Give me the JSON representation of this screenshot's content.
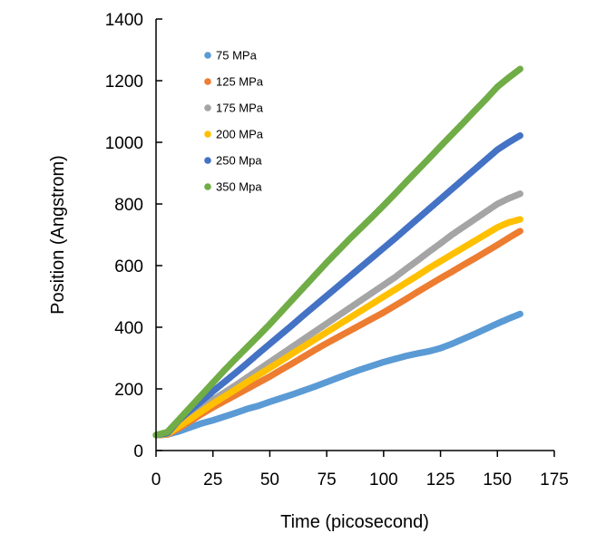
{
  "chart_data": {
    "type": "scatter",
    "title": "",
    "xlabel": "Time (picosecond)",
    "ylabel": "Position (Angstrom)",
    "xlim": [
      0,
      175
    ],
    "ylim": [
      0,
      1400
    ],
    "xticks": [
      0,
      25,
      50,
      75,
      100,
      125,
      150,
      175
    ],
    "yticks": [
      0,
      200,
      400,
      600,
      800,
      1000,
      1200,
      1400
    ],
    "grid": false,
    "legend_position": "top-left",
    "series": [
      {
        "name": "75 MPa",
        "color": "#5b9bd5",
        "points": [
          [
            0,
            50
          ],
          [
            5,
            52
          ],
          [
            10,
            62
          ],
          [
            15,
            75
          ],
          [
            20,
            88
          ],
          [
            25,
            98
          ],
          [
            30,
            110
          ],
          [
            35,
            122
          ],
          [
            40,
            135
          ],
          [
            45,
            145
          ],
          [
            50,
            158
          ],
          [
            55,
            170
          ],
          [
            60,
            182
          ],
          [
            65,
            195
          ],
          [
            70,
            208
          ],
          [
            75,
            222
          ],
          [
            80,
            236
          ],
          [
            85,
            250
          ],
          [
            90,
            263
          ],
          [
            95,
            275
          ],
          [
            100,
            287
          ],
          [
            105,
            297
          ],
          [
            110,
            307
          ],
          [
            115,
            315
          ],
          [
            120,
            322
          ],
          [
            125,
            332
          ],
          [
            130,
            346
          ],
          [
            135,
            362
          ],
          [
            140,
            378
          ],
          [
            145,
            395
          ],
          [
            150,
            412
          ],
          [
            155,
            428
          ],
          [
            160,
            443
          ]
        ]
      },
      {
        "name": "125 MPa",
        "color": "#ed7d31",
        "points": [
          [
            0,
            50
          ],
          [
            5,
            52
          ],
          [
            10,
            72
          ],
          [
            15,
            95
          ],
          [
            20,
            118
          ],
          [
            25,
            140
          ],
          [
            30,
            160
          ],
          [
            35,
            180
          ],
          [
            40,
            200
          ],
          [
            45,
            220
          ],
          [
            50,
            240
          ],
          [
            55,
            262
          ],
          [
            60,
            283
          ],
          [
            65,
            305
          ],
          [
            70,
            327
          ],
          [
            75,
            348
          ],
          [
            80,
            368
          ],
          [
            85,
            388
          ],
          [
            90,
            408
          ],
          [
            95,
            428
          ],
          [
            100,
            448
          ],
          [
            105,
            470
          ],
          [
            110,
            492
          ],
          [
            115,
            515
          ],
          [
            120,
            537
          ],
          [
            125,
            559
          ],
          [
            130,
            580
          ],
          [
            135,
            602
          ],
          [
            140,
            623
          ],
          [
            145,
            645
          ],
          [
            150,
            667
          ],
          [
            155,
            690
          ],
          [
            160,
            712
          ]
        ]
      },
      {
        "name": "175 MPa",
        "color": "#a5a5a5",
        "points": [
          [
            0,
            50
          ],
          [
            5,
            54
          ],
          [
            10,
            85
          ],
          [
            15,
            115
          ],
          [
            20,
            140
          ],
          [
            25,
            165
          ],
          [
            30,
            188
          ],
          [
            35,
            212
          ],
          [
            40,
            237
          ],
          [
            45,
            262
          ],
          [
            50,
            287
          ],
          [
            55,
            312
          ],
          [
            60,
            337
          ],
          [
            65,
            362
          ],
          [
            70,
            387
          ],
          [
            75,
            412
          ],
          [
            80,
            437
          ],
          [
            85,
            462
          ],
          [
            90,
            487
          ],
          [
            95,
            512
          ],
          [
            100,
            537
          ],
          [
            105,
            562
          ],
          [
            110,
            590
          ],
          [
            115,
            617
          ],
          [
            120,
            645
          ],
          [
            125,
            672
          ],
          [
            130,
            700
          ],
          [
            135,
            725
          ],
          [
            140,
            750
          ],
          [
            145,
            775
          ],
          [
            150,
            800
          ],
          [
            155,
            818
          ],
          [
            160,
            833
          ]
        ]
      },
      {
        "name": "200 MPa",
        "color": "#ffc000",
        "points": [
          [
            0,
            50
          ],
          [
            5,
            54
          ],
          [
            10,
            78
          ],
          [
            15,
            102
          ],
          [
            20,
            127
          ],
          [
            25,
            152
          ],
          [
            30,
            175
          ],
          [
            35,
            198
          ],
          [
            40,
            222
          ],
          [
            45,
            245
          ],
          [
            50,
            268
          ],
          [
            55,
            291
          ],
          [
            60,
            315
          ],
          [
            65,
            338
          ],
          [
            70,
            361
          ],
          [
            75,
            384
          ],
          [
            80,
            407
          ],
          [
            85,
            430
          ],
          [
            90,
            453
          ],
          [
            95,
            476
          ],
          [
            100,
            499
          ],
          [
            105,
            522
          ],
          [
            110,
            545
          ],
          [
            115,
            568
          ],
          [
            120,
            592
          ],
          [
            125,
            614
          ],
          [
            130,
            636
          ],
          [
            135,
            658
          ],
          [
            140,
            680
          ],
          [
            145,
            702
          ],
          [
            150,
            724
          ],
          [
            155,
            740
          ],
          [
            160,
            750
          ]
        ]
      },
      {
        "name": "250 Mpa",
        "color": "#4472c4",
        "points": [
          [
            0,
            50
          ],
          [
            5,
            56
          ],
          [
            10,
            98
          ],
          [
            15,
            130
          ],
          [
            20,
            160
          ],
          [
            25,
            192
          ],
          [
            30,
            222
          ],
          [
            35,
            252
          ],
          [
            40,
            283
          ],
          [
            45,
            315
          ],
          [
            50,
            346
          ],
          [
            55,
            377
          ],
          [
            60,
            408
          ],
          [
            65,
            440
          ],
          [
            70,
            471
          ],
          [
            75,
            502
          ],
          [
            80,
            533
          ],
          [
            85,
            564
          ],
          [
            90,
            595
          ],
          [
            95,
            626
          ],
          [
            100,
            657
          ],
          [
            105,
            688
          ],
          [
            110,
            720
          ],
          [
            115,
            752
          ],
          [
            120,
            784
          ],
          [
            125,
            816
          ],
          [
            130,
            848
          ],
          [
            135,
            880
          ],
          [
            140,
            912
          ],
          [
            145,
            944
          ],
          [
            150,
            976
          ],
          [
            155,
            1000
          ],
          [
            160,
            1022
          ]
        ]
      },
      {
        "name": "350 Mpa",
        "color": "#70ad47",
        "points": [
          [
            0,
            50
          ],
          [
            5,
            60
          ],
          [
            10,
            100
          ],
          [
            15,
            140
          ],
          [
            20,
            180
          ],
          [
            25,
            220
          ],
          [
            30,
            260
          ],
          [
            35,
            298
          ],
          [
            40,
            335
          ],
          [
            45,
            372
          ],
          [
            50,
            410
          ],
          [
            55,
            450
          ],
          [
            60,
            490
          ],
          [
            65,
            530
          ],
          [
            70,
            570
          ],
          [
            75,
            610
          ],
          [
            80,
            648
          ],
          [
            85,
            686
          ],
          [
            90,
            722
          ],
          [
            95,
            758
          ],
          [
            100,
            795
          ],
          [
            105,
            833
          ],
          [
            110,
            872
          ],
          [
            115,
            910
          ],
          [
            120,
            948
          ],
          [
            125,
            987
          ],
          [
            130,
            1025
          ],
          [
            135,
            1063
          ],
          [
            140,
            1102
          ],
          [
            145,
            1140
          ],
          [
            150,
            1180
          ],
          [
            155,
            1210
          ],
          [
            160,
            1238
          ]
        ]
      }
    ]
  }
}
